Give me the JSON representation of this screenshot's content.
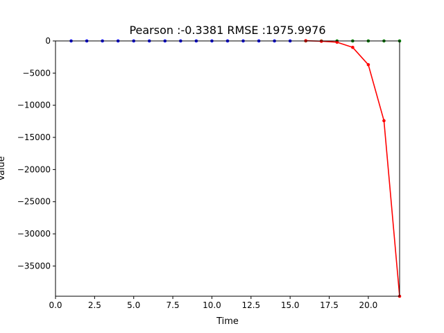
{
  "chart_data": {
    "type": "line",
    "title": "Pearson :-0.3381  RMSE :1975.9976",
    "xlabel": "Time",
    "ylabel": "Value",
    "xlim": [
      0,
      22
    ],
    "ylim": [
      -39700,
      0
    ],
    "grid": false,
    "xticks": [
      0,
      2.5,
      5,
      7.5,
      10,
      12.5,
      15,
      17.5,
      20
    ],
    "xtick_labels": [
      "0.0",
      "2.5",
      "5.0",
      "7.5",
      "10.0",
      "12.5",
      "15.0",
      "17.5",
      "20.0"
    ],
    "yticks": [
      0,
      -5000,
      -10000,
      -15000,
      -20000,
      -25000,
      -30000,
      -35000
    ],
    "ytick_labels": [
      "0",
      "−5000",
      "−10000",
      "−15000",
      "−20000",
      "−25000",
      "−30000",
      "−35000"
    ],
    "series": [
      {
        "color": "#0000ff",
        "line": false,
        "x": [
          1,
          2,
          3,
          4,
          5,
          6,
          7,
          8,
          9,
          10,
          11,
          12,
          13,
          14,
          15
        ],
        "y": [
          0,
          0,
          0,
          0,
          0,
          0,
          0,
          0,
          0,
          0,
          0,
          0,
          0,
          0,
          0
        ]
      },
      {
        "color": "#008000",
        "line": false,
        "x": [
          16,
          17,
          18,
          19,
          20,
          21,
          22
        ],
        "y": [
          0,
          0,
          0,
          0,
          0,
          0,
          0
        ]
      },
      {
        "color": "#ff0000",
        "line": true,
        "x": [
          16,
          17,
          18,
          19,
          20,
          21,
          22
        ],
        "y": [
          30,
          -50,
          -200,
          -1000,
          -3700,
          -12400,
          -39700
        ]
      }
    ]
  }
}
